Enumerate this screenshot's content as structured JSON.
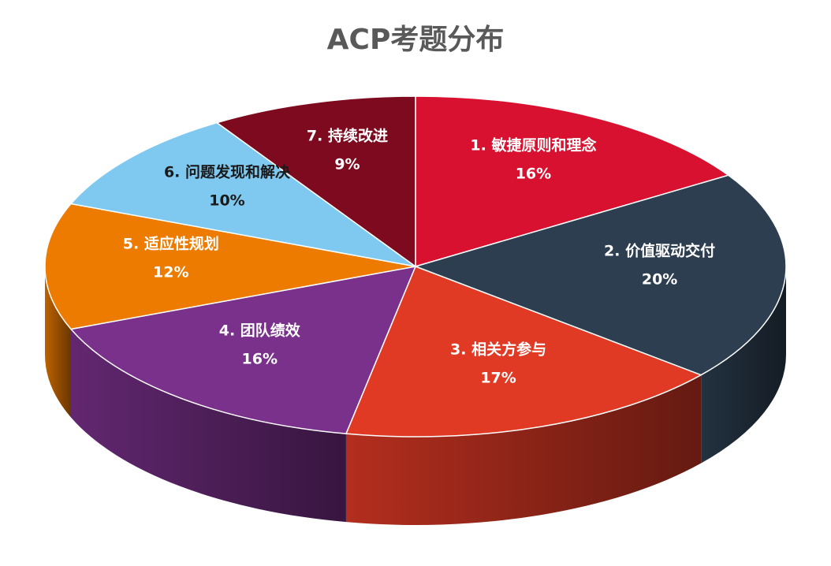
{
  "chart_data": {
    "type": "pie",
    "title": "ACP考题分布",
    "categories": [
      "1. 敏捷原则和理念",
      "2. 价值驱动交付",
      "3. 相关方参与",
      "4. 团队绩效",
      "5. 适应性规划",
      "6. 问题发现和解决",
      "7. 持续改进"
    ],
    "values": [
      16,
      20,
      17,
      16,
      12,
      10,
      9
    ],
    "value_labels": [
      "16%",
      "20%",
      "17%",
      "16%",
      "12%",
      "10%",
      "9%"
    ],
    "colors": [
      "#d7112f",
      "#2c3e50",
      "#e03a25",
      "#7a318c",
      "#ec7b00",
      "#7fc8ef",
      "#7d0a1e"
    ]
  }
}
